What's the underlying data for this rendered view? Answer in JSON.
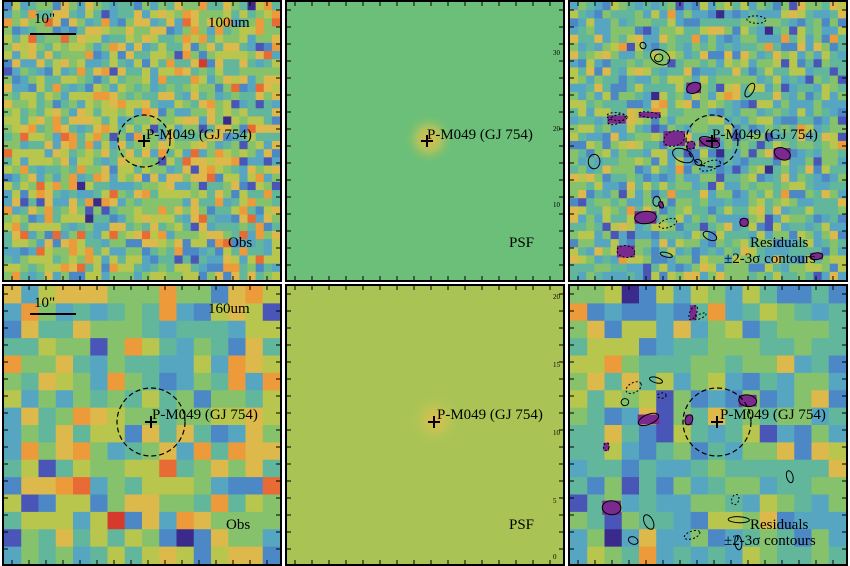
{
  "rows": [
    {
      "band": "100um",
      "scalebar": "10\"",
      "target": "P-M049 (GJ 754)",
      "obs_label": "Obs",
      "psf_label": "PSF",
      "res_label_1": "Residuals",
      "res_label_2": "±2-3σ contours",
      "obs_seed": 11,
      "res_seed": 23,
      "psf_bg": "#6bbf78"
    },
    {
      "band": "160um",
      "scalebar": "10\"",
      "target": "P-M049 (GJ 754)",
      "obs_label": "Obs",
      "psf_label": "PSF",
      "res_label_1": "Residuals",
      "res_label_2": "±2-3σ contours",
      "obs_seed": 41,
      "res_seed": 57,
      "psf_bg": "#a9c455"
    }
  ],
  "tick_labels": {
    "psf_top": [
      "30",
      "20",
      "10"
    ],
    "psf_bottom": [
      "20",
      "15",
      "10",
      "5",
      "0"
    ]
  },
  "colors": {
    "palette": [
      "#3a2a8c",
      "#4a55b8",
      "#4c88c6",
      "#56a6c2",
      "#62b69c",
      "#86c26c",
      "#b8c64e",
      "#ddb84a",
      "#ec9a3a",
      "#e86a34",
      "#d63a2c"
    ],
    "purple": "#7a2a8f"
  }
}
